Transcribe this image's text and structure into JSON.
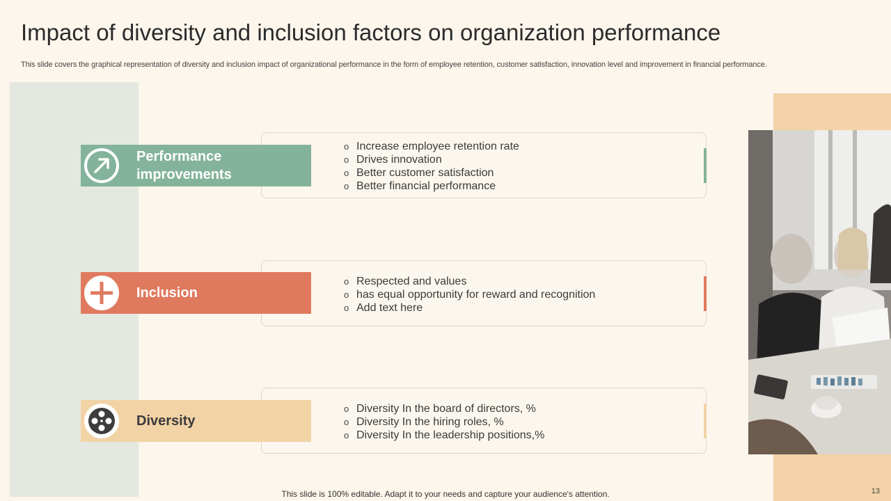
{
  "slide": {
    "title": "Impact of diversity and inclusion factors on organization performance",
    "subtitle": "This slide covers the graphical representation of diversity and inclusion impact of organizational performance in the form of employee retention, customer satisfaction, innovation level and improvement in financial performance.",
    "footer": "This slide is 100% editable. Adapt it to your needs and capture your audience's attention.",
    "page_number": "13"
  },
  "colors": {
    "performance": "#84b39b",
    "inclusion": "#e07a5f",
    "diversity": "#f2d3a6"
  },
  "rows": [
    {
      "label_line1": "Performance",
      "label_line2": "improvements",
      "icon": "arrow-up-right-icon",
      "bullet": "o",
      "items": [
        "Increase employee retention rate",
        "Drives innovation",
        "Better customer satisfaction",
        "Better financial performance"
      ]
    },
    {
      "label_line1": "Inclusion",
      "icon": "plus-icon",
      "bullet": "o",
      "items": [
        "Respected and values",
        "has equal opportunity  for reward and recognition",
        "Add text here"
      ]
    },
    {
      "label_line1": "Diversity",
      "icon": "film-reel-icon",
      "bullet": "o",
      "items": [
        "Diversity In the board of directors, %",
        "Diversity In the hiring roles, %",
        "Diversity In the leadership positions,%"
      ]
    }
  ]
}
